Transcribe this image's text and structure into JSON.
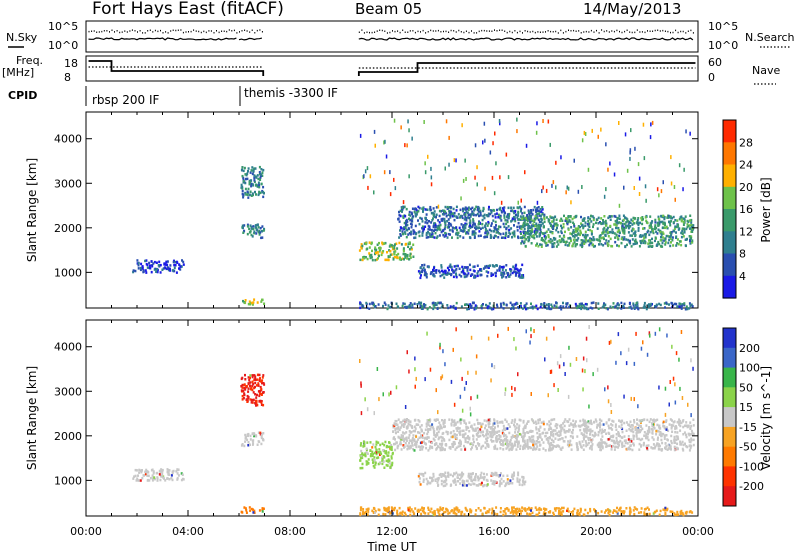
{
  "header": {
    "station": "Fort Hays East (fitACF)",
    "beam": "Beam 05",
    "date": "14/May/2013"
  },
  "colors": {
    "power_scale": [
      "#1a1ae6",
      "#2a4fb0",
      "#2f7f8f",
      "#3a9a6a",
      "#6ec24a",
      "#ffb000",
      "#ff7700",
      "#ff2a00"
    ],
    "velocity_scale": [
      "#2233cc",
      "#3a66c8",
      "#39b54a",
      "#8bd34a",
      "#c8c8c8",
      "#f7a323",
      "#ff7a00",
      "#ff3300",
      "#e61a1a"
    ]
  },
  "top_panels": {
    "nsky_label": "N.Sky",
    "nsky_ticks": [
      "10^5",
      "10^0"
    ],
    "nsearch_label": "N.Search",
    "nsearch_ticks": [
      "10^5",
      "10^0"
    ],
    "freq_label": "Freq.",
    "freq_unit": "[MHz]",
    "freq_ticks": [
      "18",
      "8"
    ],
    "nave_label": "Nave",
    "nave_ticks": [
      "60",
      "0"
    ],
    "cpid_label": "CPID",
    "cpid_segments": [
      "rbsp 200 IF",
      "themis -3300 IF"
    ]
  },
  "x_axis": {
    "label": "Time UT",
    "ticks": [
      "00:00",
      "04:00",
      "08:00",
      "12:00",
      "16:00",
      "20:00",
      "00:00"
    ]
  },
  "chart_data": [
    {
      "type": "heatmap",
      "title": "",
      "xlabel": "",
      "ylabel": "Slant Range [km]",
      "xlim": [
        0,
        24
      ],
      "ylim": [
        200,
        4600
      ],
      "yticks": [
        "1000",
        "2000",
        "3000",
        "4000"
      ],
      "colorbar": {
        "label": "Power [dB]",
        "ticks": [
          "4",
          "8",
          "12",
          "16",
          "20",
          "24",
          "28"
        ],
        "range": [
          0,
          30
        ]
      },
      "echo_regions": [
        {
          "x": [
            1.8,
            3.8
          ],
          "y": [
            1020,
            1300
          ],
          "value": 4
        },
        {
          "x": [
            6.05,
            6.95
          ],
          "y": [
            2700,
            3400
          ],
          "value": 10
        },
        {
          "x": [
            6.05,
            6.95
          ],
          "y": [
            1800,
            2100
          ],
          "value": 10
        },
        {
          "x": [
            6.05,
            6.95
          ],
          "y": [
            300,
            420
          ],
          "value": 18
        },
        {
          "x": [
            10.7,
            12.8
          ],
          "y": [
            1300,
            1700
          ],
          "value": 16
        },
        {
          "x": [
            12.2,
            18.0
          ],
          "y": [
            1800,
            2500
          ],
          "value": 8
        },
        {
          "x": [
            13.0,
            17.2
          ],
          "y": [
            900,
            1200
          ],
          "value": 6
        },
        {
          "x": [
            17.0,
            23.8
          ],
          "y": [
            1600,
            2300
          ],
          "value": 12
        },
        {
          "x": [
            10.7,
            23.8
          ],
          "y": [
            200,
            350
          ],
          "value": 8
        }
      ]
    },
    {
      "type": "heatmap",
      "title": "",
      "xlabel": "Time UT",
      "ylabel": "Slant Range [km]",
      "xlim": [
        0,
        24
      ],
      "ylim": [
        200,
        4600
      ],
      "yticks": [
        "1000",
        "2000",
        "3000",
        "4000"
      ],
      "colorbar": {
        "label": "Velocity [m s^-1]",
        "ticks": [
          "200",
          "100",
          "50",
          "15",
          "-15",
          "-50",
          "-100",
          "-200"
        ],
        "range": [
          -250,
          250
        ]
      },
      "echo_regions": [
        {
          "x": [
            1.8,
            3.8
          ],
          "y": [
            1020,
            1300
          ],
          "value": 0
        },
        {
          "x": [
            6.05,
            6.95
          ],
          "y": [
            2700,
            3400
          ],
          "value": -200
        },
        {
          "x": [
            6.05,
            6.95
          ],
          "y": [
            1800,
            2100
          ],
          "value": 0
        },
        {
          "x": [
            6.05,
            6.95
          ],
          "y": [
            300,
            420
          ],
          "value": -100
        },
        {
          "x": [
            10.7,
            12.0
          ],
          "y": [
            1300,
            1900
          ],
          "value": 40
        },
        {
          "x": [
            12.0,
            23.8
          ],
          "y": [
            1700,
            2400
          ],
          "value": 0
        },
        {
          "x": [
            13.0,
            17.2
          ],
          "y": [
            900,
            1200
          ],
          "value": 0
        },
        {
          "x": [
            10.7,
            23.8
          ],
          "y": [
            250,
            420
          ],
          "value": -60
        }
      ]
    }
  ]
}
